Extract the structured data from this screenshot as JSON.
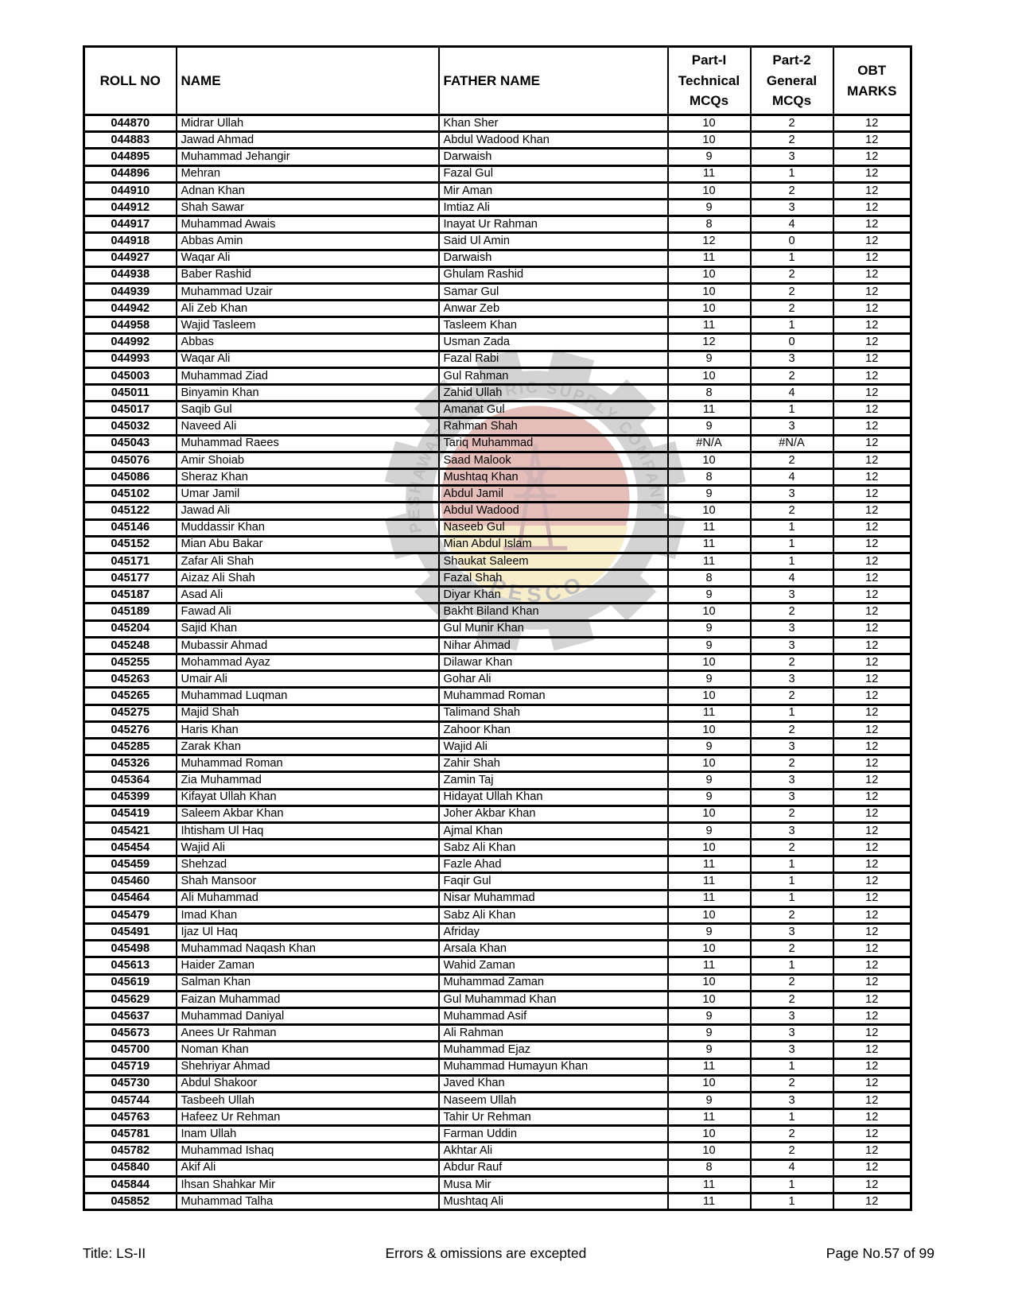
{
  "table": {
    "columns": [
      "ROLL NO",
      "NAME",
      "FATHER NAME",
      "Part-I\nTechnical\nMCQs",
      "Part-2\nGeneral\nMCQs",
      "OBT\nMARKS"
    ],
    "rows": [
      [
        "044870",
        "Midrar Ullah",
        "Khan Sher",
        "10",
        "2",
        "12"
      ],
      [
        "044883",
        "Jawad Ahmad",
        "Abdul Wadood Khan",
        "10",
        "2",
        "12"
      ],
      [
        "044895",
        "Muhammad Jehangir",
        "Darwaish",
        "9",
        "3",
        "12"
      ],
      [
        "044896",
        "Mehran",
        "Fazal Gul",
        "11",
        "1",
        "12"
      ],
      [
        "044910",
        "Adnan Khan",
        "Mir Aman",
        "10",
        "2",
        "12"
      ],
      [
        "044912",
        "Shah Sawar",
        "Imtiaz Ali",
        "9",
        "3",
        "12"
      ],
      [
        "044917",
        "Muhammad Awais",
        "Inayat Ur Rahman",
        "8",
        "4",
        "12"
      ],
      [
        "044918",
        "Abbas Amin",
        "Said Ul Amin",
        "12",
        "0",
        "12"
      ],
      [
        "044927",
        "Waqar Ali",
        "Darwaish",
        "11",
        "1",
        "12"
      ],
      [
        "044938",
        "Baber Rashid",
        "Ghulam Rashid",
        "10",
        "2",
        "12"
      ],
      [
        "044939",
        "Muhammad Uzair",
        "Samar Gul",
        "10",
        "2",
        "12"
      ],
      [
        "044942",
        "Ali Zeb Khan",
        "Anwar Zeb",
        "10",
        "2",
        "12"
      ],
      [
        "044958",
        "Wajid Tasleem",
        "Tasleem Khan",
        "11",
        "1",
        "12"
      ],
      [
        "044992",
        "Abbas",
        "Usman Zada",
        "12",
        "0",
        "12"
      ],
      [
        "044993",
        "Waqar Ali",
        "Fazal Rabi",
        "9",
        "3",
        "12"
      ],
      [
        "045003",
        "Muhammad Ziad",
        "Gul Rahman",
        "10",
        "2",
        "12"
      ],
      [
        "045011",
        "Binyamin Khan",
        "Zahid Ullah",
        "8",
        "4",
        "12"
      ],
      [
        "045017",
        "Saqib Gul",
        "Amanat Gul",
        "11",
        "1",
        "12"
      ],
      [
        "045032",
        "Naveed Ali",
        "Rahman Shah",
        "9",
        "3",
        "12"
      ],
      [
        "045043",
        "Muhammad Raees",
        "Tariq Muhammad",
        "#N/A",
        "#N/A",
        "12"
      ],
      [
        "045076",
        "Amir Shoiab",
        "Saad Malook",
        "10",
        "2",
        "12"
      ],
      [
        "045086",
        "Sheraz Khan",
        "Mushtaq Khan",
        "8",
        "4",
        "12"
      ],
      [
        "045102",
        "Umar Jamil",
        "Abdul Jamil",
        "9",
        "3",
        "12"
      ],
      [
        "045122",
        "Jawad Ali",
        "Abdul Wadood",
        "10",
        "2",
        "12"
      ],
      [
        "045146",
        "Muddassir Khan",
        "Naseeb Gul",
        "11",
        "1",
        "12"
      ],
      [
        "045152",
        "Mian Abu Bakar",
        "Mian Abdul Islam",
        "11",
        "1",
        "12"
      ],
      [
        "045171",
        "Zafar Ali Shah",
        "Shaukat Saleem",
        "11",
        "1",
        "12"
      ],
      [
        "045177",
        "Aizaz Ali Shah",
        "Fazal Shah",
        "8",
        "4",
        "12"
      ],
      [
        "045187",
        "Asad Ali",
        "Diyar Khan",
        "9",
        "3",
        "12"
      ],
      [
        "045189",
        "Fawad Ali",
        "Bakht Biland Khan",
        "10",
        "2",
        "12"
      ],
      [
        "045204",
        "Sajid Khan",
        "Gul Munir Khan",
        "9",
        "3",
        "12"
      ],
      [
        "045248",
        "Mubassir Ahmad",
        "Nihar Ahmad",
        "9",
        "3",
        "12"
      ],
      [
        "045255",
        "Mohammad Ayaz",
        "Dilawar Khan",
        "10",
        "2",
        "12"
      ],
      [
        "045263",
        "Umair Ali",
        "Gohar Ali",
        "9",
        "3",
        "12"
      ],
      [
        "045265",
        "Muhammad Luqman",
        "Muhammad Roman",
        "10",
        "2",
        "12"
      ],
      [
        "045275",
        "Majid Shah",
        "Talimand Shah",
        "11",
        "1",
        "12"
      ],
      [
        "045276",
        "Haris Khan",
        "Zahoor Khan",
        "10",
        "2",
        "12"
      ],
      [
        "045285",
        "Zarak Khan",
        "Wajid Ali",
        "9",
        "3",
        "12"
      ],
      [
        "045326",
        "Muhammad Roman",
        "Zahir Shah",
        "10",
        "2",
        "12"
      ],
      [
        "045364",
        "Zia Muhammad",
        "Zamin Taj",
        "9",
        "3",
        "12"
      ],
      [
        "045399",
        "Kifayat Ullah Khan",
        "Hidayat Ullah Khan",
        "9",
        "3",
        "12"
      ],
      [
        "045419",
        "Saleem Akbar Khan",
        "Joher Akbar Khan",
        "10",
        "2",
        "12"
      ],
      [
        "045421",
        "Ihtisham Ul Haq",
        "Ajmal Khan",
        "9",
        "3",
        "12"
      ],
      [
        "045454",
        "Wajid Ali",
        "Sabz Ali Khan",
        "10",
        "2",
        "12"
      ],
      [
        "045459",
        "Shehzad",
        "Fazle Ahad",
        "11",
        "1",
        "12"
      ],
      [
        "045460",
        "Shah Mansoor",
        "Faqir Gul",
        "11",
        "1",
        "12"
      ],
      [
        "045464",
        "Ali Muhammad",
        "Nisar Muhammad",
        "11",
        "1",
        "12"
      ],
      [
        "045479",
        "Imad Khan",
        "Sabz Ali Khan",
        "10",
        "2",
        "12"
      ],
      [
        "045491",
        "Ijaz Ul Haq",
        "Afriday",
        "9",
        "3",
        "12"
      ],
      [
        "045498",
        "Muhammad Naqash Khan",
        "Arsala Khan",
        "10",
        "2",
        "12"
      ],
      [
        "045613",
        "Haider Zaman",
        "Wahid Zaman",
        "11",
        "1",
        "12"
      ],
      [
        "045619",
        "Salman Khan",
        "Muhammad Zaman",
        "10",
        "2",
        "12"
      ],
      [
        "045629",
        "Faizan Muhammad",
        "Gul Muhammad Khan",
        "10",
        "2",
        "12"
      ],
      [
        "045637",
        "Muhammad Daniyal",
        "Muhammad Asif",
        "9",
        "3",
        "12"
      ],
      [
        "045673",
        "Anees Ur Rahman",
        "Ali Rahman",
        "9",
        "3",
        "12"
      ],
      [
        "045700",
        "Noman Khan",
        "Muhammad Ejaz",
        "9",
        "3",
        "12"
      ],
      [
        "045719",
        "Shehriyar Ahmad",
        "Muhammad Humayun Khan",
        "11",
        "1",
        "12"
      ],
      [
        "045730",
        "Abdul Shakoor",
        "Javed Khan",
        "10",
        "2",
        "12"
      ],
      [
        "045744",
        "Tasbeeh Ullah",
        "Naseem Ullah",
        "9",
        "3",
        "12"
      ],
      [
        "045763",
        "Hafeez Ur Rehman",
        "Tahir Ur Rehman",
        "11",
        "1",
        "12"
      ],
      [
        "045781",
        "Inam Ullah",
        "Farman Uddin",
        "10",
        "2",
        "12"
      ],
      [
        "045782",
        "Muhammad Ishaq",
        "Akhtar Ali",
        "10",
        "2",
        "12"
      ],
      [
        "045840",
        "Akif Ali",
        "Abdur Rauf",
        "8",
        "4",
        "12"
      ],
      [
        "045844",
        "Ihsan Shahkar Mir",
        "Musa Mir",
        "11",
        "1",
        "12"
      ],
      [
        "045852",
        "Muhammad Talha",
        "Mushtaq Ali",
        "11",
        "1",
        "12"
      ]
    ]
  },
  "watermark": {
    "arc_text": "PESHAWAR ELECTRIC SUPPLY COMPANY",
    "bottom_text": "PESCO",
    "colors": {
      "gear": "#7d7d7d",
      "text": "#3f3f3f",
      "red": "#b23a2e",
      "yellow": "#e9c95f",
      "tower": "#7a1f1f"
    }
  },
  "footer": {
    "title": "Title: LS-II",
    "disclaimer": "Errors & omissions are excepted",
    "page": "Page No.57 of 99"
  }
}
